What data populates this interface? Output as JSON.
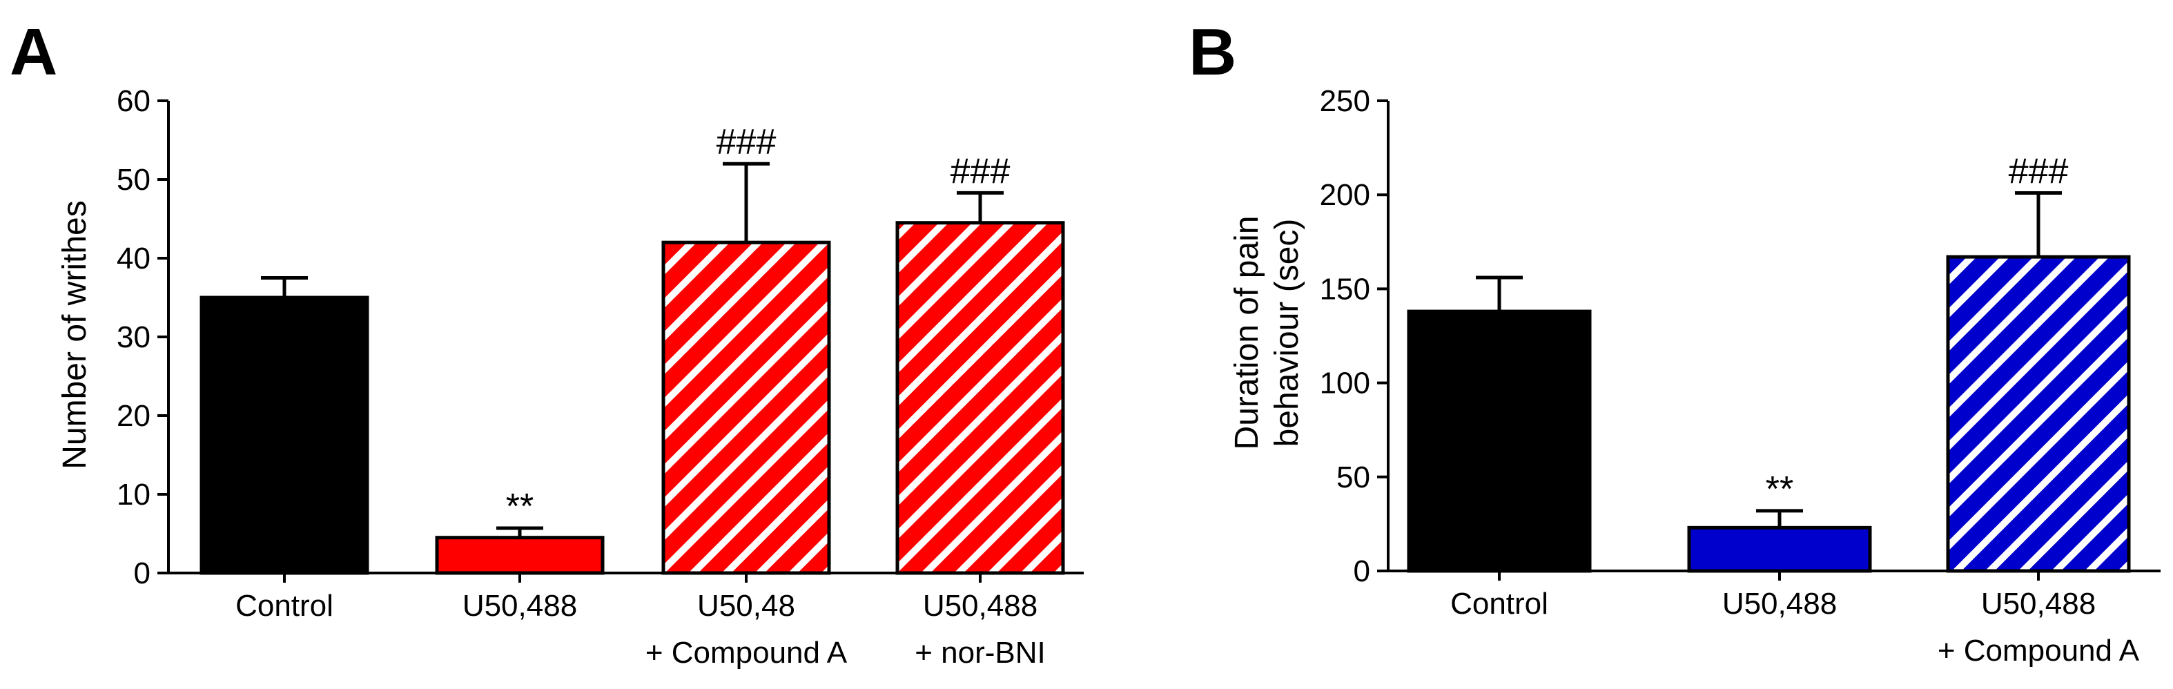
{
  "chart_data": [
    {
      "type": "bar",
      "panel": "A",
      "ylabel": "Number of writhes",
      "ylim": [
        0,
        60
      ],
      "yticks": [
        0,
        10,
        20,
        30,
        40,
        50,
        60
      ],
      "categories": [
        {
          "line1": "Control",
          "line2": ""
        },
        {
          "line1": "U50,488",
          "line2": ""
        },
        {
          "line1": "U50,48",
          "line2": "+ Compound A"
        },
        {
          "line1": "U50,488",
          "line2": "+ nor-BNI"
        }
      ],
      "values": [
        35,
        4.5,
        42,
        44.5
      ],
      "errors": [
        2.5,
        1.2,
        10,
        3.8
      ],
      "fill": [
        "solid",
        "solid",
        "hatched",
        "hatched"
      ],
      "colors": [
        "#000000",
        "#ff0000",
        "#ff0000",
        "#ff0000"
      ],
      "annotations": [
        "",
        "**",
        "###",
        "###"
      ]
    },
    {
      "type": "bar",
      "panel": "B",
      "ylabel_line1": "Duration of pain",
      "ylabel_line2": "behaviour (sec)",
      "ylim": [
        0,
        250
      ],
      "yticks": [
        0,
        50,
        100,
        150,
        200,
        250
      ],
      "categories": [
        {
          "line1": "Control",
          "line2": ""
        },
        {
          "line1": "U50,488",
          "line2": ""
        },
        {
          "line1": "U50,488",
          "line2": "+ Compound A"
        }
      ],
      "values": [
        138,
        23,
        167
      ],
      "errors": [
        18,
        9,
        34
      ],
      "fill": [
        "solid",
        "solid",
        "hatched"
      ],
      "colors": [
        "#000000",
        "#0000cc",
        "#0000cc"
      ],
      "annotations": [
        "",
        "**",
        "###"
      ]
    }
  ]
}
